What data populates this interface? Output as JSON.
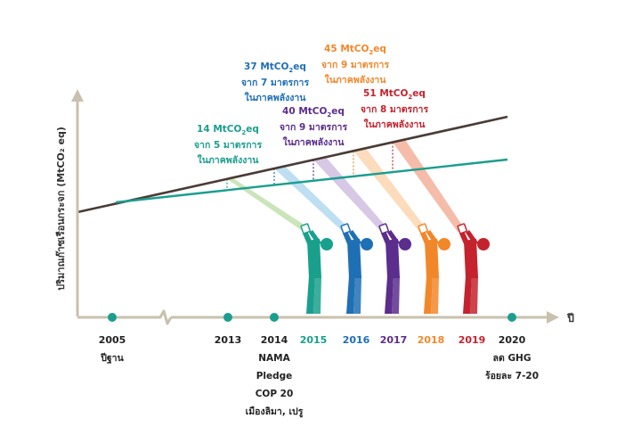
{
  "chart_data": {
    "type": "line",
    "ylabel": "ปริมาณก๊าซเรือนกระจก (MtCO₂ eq)",
    "xlabel": "ปี",
    "x": [
      2005,
      2020
    ],
    "series": [
      {
        "key": "bau",
        "color": "#4a3b35"
      },
      {
        "key": "target",
        "color": "#1a9e8f"
      }
    ],
    "timeline": [
      {
        "year": "2005",
        "note": [
          "ปีฐาน"
        ],
        "dot": true,
        "color": "#222222"
      },
      {
        "year": "2013",
        "note": [],
        "dot": true,
        "color": "#222222"
      },
      {
        "year": "2014",
        "note": [
          "NAMA",
          "Pledge",
          "COP 20",
          "เมืองลิมา, เปรู"
        ],
        "dot": true,
        "color": "#222222"
      },
      {
        "year": "2015",
        "note": [],
        "dot": false,
        "color": "#19a08c"
      },
      {
        "year": "2016",
        "note": [],
        "dot": false,
        "color": "#1f6fb5"
      },
      {
        "year": "2017",
        "note": [],
        "dot": false,
        "color": "#5b2d8c"
      },
      {
        "year": "2018",
        "note": [],
        "dot": false,
        "color": "#f2872a"
      },
      {
        "year": "2019",
        "note": [],
        "dot": false,
        "color": "#c4232d"
      },
      {
        "year": "2020",
        "note": [
          "ลด GHG",
          "ร้อยละ 7-20"
        ],
        "dot": true,
        "color": "#222222"
      }
    ],
    "annotations": [
      {
        "year": 2013,
        "value": "14 MtCO",
        "sub": "2",
        "unit": "eq",
        "line2": "จาก 5 มาตรการ",
        "line3": "ในภาคพลังงาน",
        "color": "#1a9e8f"
      },
      {
        "year": 2014,
        "value": "37 MtCO",
        "sub": "2",
        "unit": "eq",
        "line2": "จาก 7 มาตรการ",
        "line3": "ในภาคพลังงาน",
        "color": "#1f6fb5"
      },
      {
        "year": 2015,
        "value": "40 MtCO",
        "sub": "2",
        "unit": "eq",
        "line2": "จาก 9 มาตรการ",
        "line3": "ในภาคพลังงาน",
        "color": "#5b2d8c"
      },
      {
        "year": 2016,
        "value": "45 MtCO",
        "sub": "2",
        "unit": "eq",
        "line2": "จาก 9 มาตรการ",
        "line3": "ในภาคพลังงาน",
        "color": "#f2872a"
      },
      {
        "year": 2017,
        "value": "51 MtCO",
        "sub": "2",
        "unit": "eq",
        "line2": "จาก 8 มาตรการ",
        "line3": "ในภาคพลังงาน",
        "color": "#c4232d"
      }
    ],
    "figures": [
      {
        "year": "2015",
        "color": "#19a08c",
        "beam": "#b8dea0"
      },
      {
        "year": "2016",
        "color": "#1f6fb5",
        "beam": "#a8d4ee"
      },
      {
        "year": "2017",
        "color": "#5b2d8c",
        "beam": "#c9b6dc"
      },
      {
        "year": "2018",
        "color": "#f2872a",
        "beam": "#fbd0a6"
      },
      {
        "year": "2019",
        "color": "#c4232d",
        "beam": "#f2a58c"
      }
    ]
  }
}
